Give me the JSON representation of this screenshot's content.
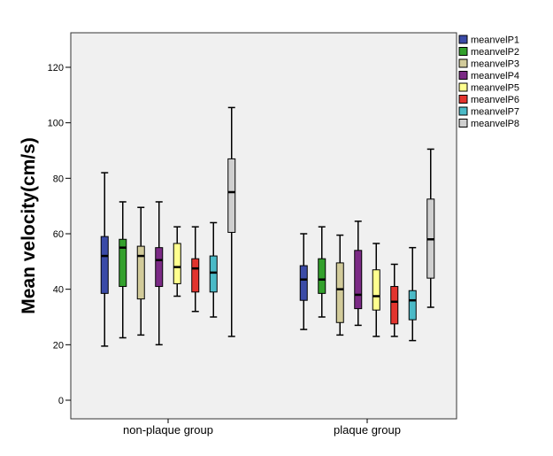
{
  "chart_data": {
    "type": "boxplot",
    "ylabel": "Mean velocity(cm/s)",
    "xlabel": "",
    "ylim": [
      -5,
      133
    ],
    "yticks": [
      0,
      20,
      40,
      60,
      80,
      100,
      120
    ],
    "grid": false,
    "legend_position": "right",
    "categories": [
      "non-plaque group",
      "plaque group"
    ],
    "series": [
      {
        "name": "meanvelP1",
        "color": "#3b4ba7",
        "boxes": [
          {
            "min": 19.5,
            "q1": 38.5,
            "median": 52,
            "q3": 59,
            "max": 82
          },
          {
            "min": 25.5,
            "q1": 36,
            "median": 43.5,
            "q3": 48.5,
            "max": 60
          }
        ]
      },
      {
        "name": "meanvelP2",
        "color": "#33a02c",
        "boxes": [
          {
            "min": 22.5,
            "q1": 41,
            "median": 55,
            "q3": 58,
            "max": 71.5
          },
          {
            "min": 30,
            "q1": 38.5,
            "median": 43.5,
            "q3": 51,
            "max": 62.5
          }
        ]
      },
      {
        "name": "meanvelP3",
        "color": "#d2cb9a",
        "boxes": [
          {
            "min": 23.5,
            "q1": 36.5,
            "median": 52,
            "q3": 55.5,
            "max": 69.5
          },
          {
            "min": 23.5,
            "q1": 28,
            "median": 40,
            "q3": 49.5,
            "max": 59.5
          }
        ]
      },
      {
        "name": "meanvelP4",
        "color": "#7b2a85",
        "boxes": [
          {
            "min": 20,
            "q1": 41,
            "median": 50.5,
            "q3": 55,
            "max": 71.5
          },
          {
            "min": 27,
            "q1": 33,
            "median": 38,
            "q3": 54,
            "max": 64.5
          }
        ]
      },
      {
        "name": "meanvelP5",
        "color": "#ffff8f",
        "boxes": [
          {
            "min": 37.5,
            "q1": 42,
            "median": 48,
            "q3": 56.5,
            "max": 62.5
          },
          {
            "min": 23,
            "q1": 32.5,
            "median": 37.5,
            "q3": 47,
            "max": 56.5
          }
        ]
      },
      {
        "name": "meanvelP6",
        "color": "#e2342e",
        "boxes": [
          {
            "min": 32,
            "q1": 39,
            "median": 47.5,
            "q3": 51,
            "max": 62.5
          },
          {
            "min": 23,
            "q1": 27.5,
            "median": 35.5,
            "q3": 41,
            "max": 49
          }
        ]
      },
      {
        "name": "meanvelP7",
        "color": "#4bbac7",
        "boxes": [
          {
            "min": 30,
            "q1": 39,
            "median": 46,
            "q3": 52,
            "max": 64
          },
          {
            "min": 21.5,
            "q1": 29,
            "median": 36,
            "q3": 39.5,
            "max": 55
          }
        ]
      },
      {
        "name": "meanvelP8",
        "color": "#cfcfcf",
        "boxes": [
          {
            "min": 23,
            "q1": 60.5,
            "median": 75,
            "q3": 87,
            "max": 105.5
          },
          {
            "min": 33.5,
            "q1": 44,
            "median": 58,
            "q3": 72.5,
            "max": 90.5
          }
        ]
      }
    ]
  }
}
